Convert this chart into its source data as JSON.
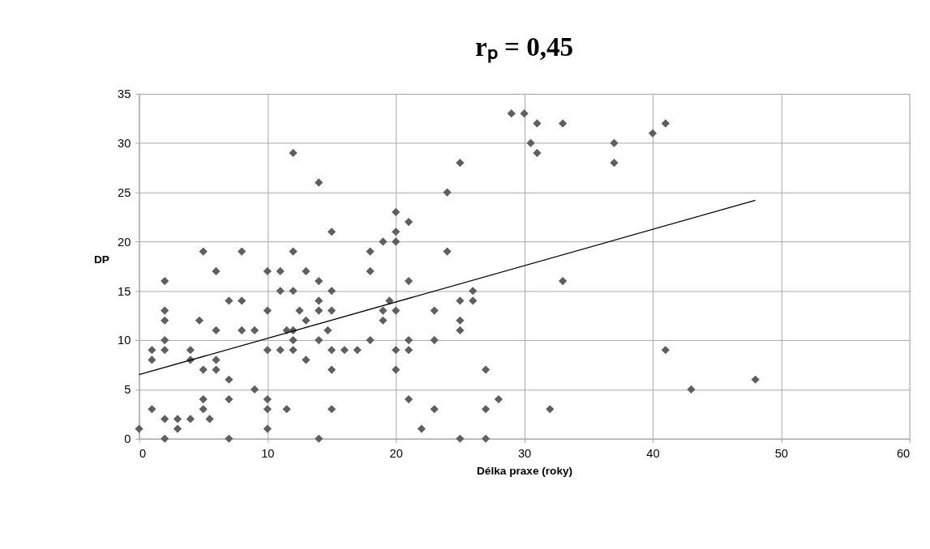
{
  "chart_data": {
    "type": "scatter",
    "title": "rₚ = 0,45",
    "xlabel": "Délka praxe (roky)",
    "ylabel": "DP",
    "xlim": [
      0,
      60
    ],
    "xticks": [
      0,
      10,
      20,
      30,
      40,
      50,
      60
    ],
    "ylim": [
      0,
      35
    ],
    "yticks": [
      0,
      5,
      10,
      15,
      20,
      25,
      30,
      35
    ],
    "grid": true,
    "marker": "diamond",
    "series": [
      {
        "type": "scatter",
        "color": "#5f5f5f",
        "x": [
          0,
          1,
          1,
          1,
          2,
          2,
          2,
          2,
          2,
          2,
          2,
          3,
          3,
          4,
          4,
          4,
          5,
          4.7,
          5,
          5,
          5,
          5.5,
          6,
          6,
          6,
          6,
          7,
          7,
          7,
          7,
          8,
          8,
          8,
          9,
          9,
          10,
          10,
          10,
          10,
          10,
          10,
          11,
          11,
          11,
          11.5,
          11.5,
          12,
          12,
          12,
          12,
          12,
          12,
          12.5,
          13,
          13,
          13,
          14,
          14,
          14,
          14,
          14,
          14,
          15,
          15,
          15,
          14.7,
          15,
          15,
          15,
          16,
          17,
          18,
          18,
          18,
          19,
          19,
          19,
          19.5,
          20,
          20,
          20,
          20,
          20,
          20,
          21,
          21,
          21,
          21,
          21,
          22,
          23,
          23,
          23,
          24,
          24,
          25,
          25,
          25,
          25,
          25,
          26,
          26,
          27,
          27,
          27,
          28,
          29,
          30,
          30.5,
          31,
          31,
          32,
          33,
          33,
          37,
          37,
          40,
          41,
          41,
          43,
          48
        ],
        "values": [
          1,
          9,
          8,
          3,
          16,
          13,
          12,
          10,
          9,
          2,
          0,
          2,
          1,
          9,
          8,
          2,
          19,
          12,
          7,
          4,
          3,
          2,
          17,
          11,
          8,
          7,
          14,
          6,
          4,
          0,
          19,
          14,
          11,
          11,
          5,
          17,
          13,
          9,
          4,
          3,
          1,
          17,
          15,
          9,
          11,
          3,
          29,
          19,
          15,
          11,
          10,
          9,
          13,
          17,
          12,
          8,
          26,
          16,
          14,
          13,
          10,
          0,
          21,
          15,
          13,
          11,
          9,
          7,
          3,
          9,
          9,
          19,
          17,
          10,
          20,
          13,
          12,
          14,
          23,
          21,
          20,
          13,
          9,
          7,
          22,
          16,
          10,
          9,
          4,
          1,
          13,
          10,
          3,
          25,
          19,
          28,
          14,
          12,
          11,
          0,
          15,
          14,
          7,
          3,
          0,
          4,
          33,
          33,
          30,
          32,
          29,
          3,
          32,
          16,
          30,
          28,
          31,
          32,
          9,
          5,
          6
        ]
      },
      {
        "type": "line",
        "color": "#000000",
        "marker": "none",
        "line_style": "solid",
        "x": [
          0,
          48
        ],
        "values": [
          6.5,
          24.2
        ]
      }
    ]
  }
}
